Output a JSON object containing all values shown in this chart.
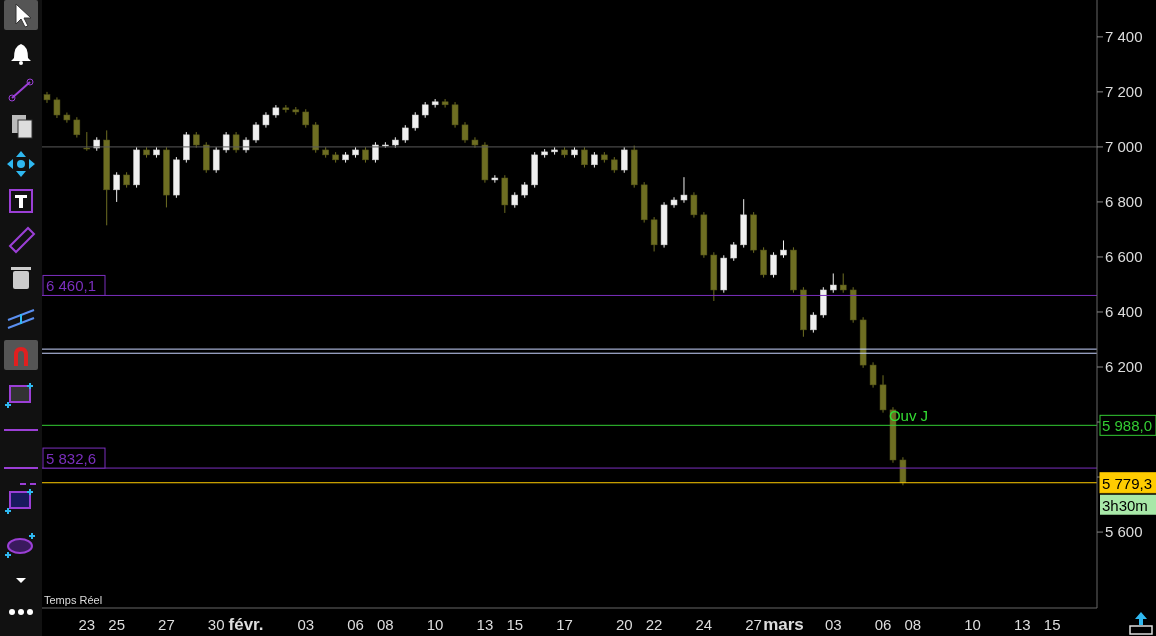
{
  "chart_data": {
    "type": "candlestick",
    "categories": [
      null,
      null,
      null,
      null,
      "23",
      null,
      null,
      "25",
      null,
      null,
      null,
      null,
      "27",
      null,
      null,
      null,
      null,
      "30",
      null,
      null,
      "févr.",
      null,
      null,
      null,
      null,
      null,
      "03",
      null,
      null,
      null,
      null,
      "06",
      null,
      null,
      "08",
      null,
      null,
      null,
      null,
      "10",
      null,
      null,
      null,
      null,
      "13",
      null,
      null,
      "15",
      null,
      null,
      null,
      null,
      "17",
      null,
      null,
      null,
      null,
      null,
      "20",
      null,
      null,
      "22",
      null,
      null,
      null,
      null,
      "24",
      null,
      null,
      null,
      null,
      "27",
      null,
      null,
      "mars",
      null,
      null,
      null,
      null,
      "03",
      null,
      null,
      null,
      null,
      "06",
      null,
      null,
      "08",
      null,
      null,
      null,
      null,
      null,
      "10",
      null,
      null,
      null,
      null,
      "13",
      null,
      null,
      "15",
      null,
      null,
      null,
      null
    ],
    "ohlc": [
      [
        7190,
        7200,
        7160,
        7171
      ],
      [
        7171,
        7180,
        7105,
        7116
      ],
      [
        7116,
        7125,
        7088,
        7098
      ],
      [
        7098,
        7108,
        7034,
        7044
      ],
      [
        6996,
        7054,
        6986,
        6996
      ],
      [
        6996,
        7035,
        6986,
        7025
      ],
      [
        7025,
        7060,
        6715,
        6844
      ],
      [
        6844,
        6908,
        6800,
        6898
      ],
      [
        6898,
        6908,
        6852,
        6862
      ],
      [
        6862,
        6999,
        6852,
        6989
      ],
      [
        6989,
        6999,
        6961,
        6971
      ],
      [
        6971,
        6999,
        6961,
        6989
      ],
      [
        6989,
        6999,
        6780,
        6825
      ],
      [
        6825,
        6963,
        6815,
        6953
      ],
      [
        6953,
        7054,
        6943,
        7044
      ],
      [
        7044,
        7054,
        6997,
        7007
      ],
      [
        7007,
        7017,
        6906,
        6916
      ],
      [
        6916,
        6999,
        6906,
        6989
      ],
      [
        6989,
        7054,
        6979,
        7044
      ],
      [
        7044,
        7054,
        6979,
        6989
      ],
      [
        6989,
        7035,
        6979,
        7025
      ],
      [
        7025,
        7090,
        7015,
        7080
      ],
      [
        7080,
        7126,
        7070,
        7116
      ],
      [
        7116,
        7152,
        7106,
        7142
      ],
      [
        7142,
        7152,
        7125,
        7135
      ],
      [
        7135,
        7145,
        7117,
        7127
      ],
      [
        7127,
        7137,
        7070,
        7080
      ],
      [
        7080,
        7090,
        6979,
        6989
      ],
      [
        6989,
        6999,
        6961,
        6971
      ],
      [
        6971,
        6981,
        6943,
        6953
      ],
      [
        6953,
        6981,
        6943,
        6971
      ],
      [
        6971,
        6999,
        6961,
        6989
      ],
      [
        6989,
        6999,
        6943,
        6953
      ],
      [
        6953,
        7017,
        6943,
        7007
      ],
      [
        7007,
        7017,
        6997,
        7007
      ],
      [
        7007,
        7035,
        6997,
        7025
      ],
      [
        7025,
        7079,
        7015,
        7069
      ],
      [
        7069,
        7126,
        7059,
        7116
      ],
      [
        7116,
        7163,
        7106,
        7153
      ],
      [
        7153,
        7174,
        7143,
        7164
      ],
      [
        7164,
        7174,
        7143,
        7153
      ],
      [
        7153,
        7163,
        7070,
        7080
      ],
      [
        7080,
        7090,
        7015,
        7025
      ],
      [
        7025,
        7035,
        6997,
        7007
      ],
      [
        7007,
        7017,
        6870,
        6880
      ],
      [
        6880,
        6897,
        6870,
        6887
      ],
      [
        6887,
        6897,
        6760,
        6789
      ],
      [
        6789,
        6835,
        6779,
        6825
      ],
      [
        6825,
        6872,
        6815,
        6862
      ],
      [
        6862,
        6981,
        6852,
        6971
      ],
      [
        6971,
        6992,
        6961,
        6982
      ],
      [
        6982,
        6999,
        6972,
        6989
      ],
      [
        6989,
        6999,
        6961,
        6971
      ],
      [
        6971,
        6999,
        6961,
        6989
      ],
      [
        6989,
        6999,
        6925,
        6935
      ],
      [
        6935,
        6981,
        6925,
        6971
      ],
      [
        6971,
        6981,
        6943,
        6953
      ],
      [
        6953,
        6963,
        6906,
        6916
      ],
      [
        6916,
        6999,
        6906,
        6989
      ],
      [
        6989,
        7005,
        6852,
        6862
      ],
      [
        6862,
        6872,
        6725,
        6735
      ],
      [
        6735,
        6745,
        6620,
        6644
      ],
      [
        6644,
        6799,
        6634,
        6789
      ],
      [
        6789,
        6817,
        6779,
        6807
      ],
      [
        6807,
        6890,
        6797,
        6825
      ],
      [
        6825,
        6835,
        6743,
        6753
      ],
      [
        6753,
        6763,
        6597,
        6607
      ],
      [
        6607,
        6617,
        6440,
        6480
      ],
      [
        6480,
        6606,
        6470,
        6596
      ],
      [
        6596,
        6654,
        6586,
        6644
      ],
      [
        6644,
        6810,
        6634,
        6753
      ],
      [
        6753,
        6763,
        6615,
        6625
      ],
      [
        6625,
        6635,
        6525,
        6535
      ],
      [
        6535,
        6617,
        6525,
        6607
      ],
      [
        6607,
        6660,
        6597,
        6625
      ],
      [
        6625,
        6635,
        6470,
        6480
      ],
      [
        6480,
        6490,
        6310,
        6335
      ],
      [
        6335,
        6399,
        6325,
        6389
      ],
      [
        6389,
        6490,
        6379,
        6480
      ],
      [
        6480,
        6540,
        6470,
        6498
      ],
      [
        6498,
        6540,
        6470,
        6480
      ],
      [
        6480,
        6490,
        6361,
        6371
      ],
      [
        6371,
        6381,
        6197,
        6207
      ],
      [
        6207,
        6217,
        6125,
        6135
      ],
      [
        6135,
        6170,
        6034,
        6044
      ],
      [
        6044,
        6054,
        5852,
        5862
      ],
      [
        5862,
        5872,
        5770,
        5779.3
      ],
      null,
      null,
      null,
      null,
      null,
      null,
      null,
      null,
      null,
      null,
      null,
      null,
      null,
      null,
      null,
      null,
      null,
      null,
      null
    ],
    "colors": [
      "#6e6e22",
      "#6e6e22",
      "#6e6e22",
      "#6e6e22",
      "#6e6e22",
      "#f0f0f0",
      "#6e6e22",
      "#f0f0f0",
      "#6e6e22",
      "#f0f0f0",
      "#6e6e22",
      "#f0f0f0",
      "#6e6e22",
      "#f0f0f0",
      "#f0f0f0",
      "#6e6e22",
      "#6e6e22",
      "#f0f0f0",
      "#f0f0f0",
      "#6e6e22",
      "#f0f0f0",
      "#f0f0f0",
      "#f0f0f0",
      "#f0f0f0",
      "#6e6e22",
      "#6e6e22",
      "#6e6e22",
      "#6e6e22",
      "#6e6e22",
      "#6e6e22",
      "#f0f0f0",
      "#f0f0f0",
      "#6e6e22",
      "#f0f0f0",
      "#f0f0f0",
      "#f0f0f0",
      "#f0f0f0",
      "#f0f0f0",
      "#f0f0f0",
      "#f0f0f0",
      "#6e6e22",
      "#6e6e22",
      "#6e6e22",
      "#6e6e22",
      "#6e6e22",
      "#f0f0f0",
      "#6e6e22",
      "#f0f0f0",
      "#f0f0f0",
      "#f0f0f0",
      "#f0f0f0",
      "#f0f0f0",
      "#6e6e22",
      "#f0f0f0",
      "#6e6e22",
      "#f0f0f0",
      "#6e6e22",
      "#6e6e22",
      "#f0f0f0",
      "#6e6e22",
      "#6e6e22",
      "#6e6e22",
      "#f0f0f0",
      "#f0f0f0",
      "#f0f0f0",
      "#6e6e22",
      "#6e6e22",
      "#6e6e22",
      "#f0f0f0",
      "#f0f0f0",
      "#f0f0f0",
      "#6e6e22",
      "#6e6e22",
      "#f0f0f0",
      "#f0f0f0",
      "#6e6e22",
      "#6e6e22",
      "#f0f0f0",
      "#f0f0f0",
      "#f0f0f0",
      "#6e6e22",
      "#6e6e22",
      "#6e6e22",
      "#6e6e22",
      "#6e6e22",
      "#6e6e22",
      "#6e6e22",
      null,
      null,
      null,
      null,
      null,
      null,
      null,
      null,
      null,
      null,
      null,
      null,
      null,
      null,
      null,
      null,
      null,
      null,
      null
    ],
    "ylim": [
      5324,
      7534
    ],
    "yticks": [
      {
        "value": 5600,
        "label": "5 600"
      },
      {
        "value": 5800,
        "label": null
      },
      {
        "value": 6000,
        "label": null
      },
      {
        "value": 6200,
        "label": "6 200"
      },
      {
        "value": 6400,
        "label": "6 400"
      },
      {
        "value": 6600,
        "label": "6 600"
      },
      {
        "value": 6800,
        "label": "6 800"
      },
      {
        "value": 7000,
        "label": "7 000"
      },
      {
        "value": 7200,
        "label": "7 200"
      },
      {
        "value": 7400,
        "label": "7 400"
      }
    ],
    "ref_lines": [
      {
        "axis": "y",
        "value": 7000,
        "color": "#5a5a5a"
      },
      {
        "axis": "y",
        "value": 6460.1,
        "label": "6 460,1",
        "color": "#7b2fbe"
      },
      {
        "axis": "y",
        "value": 6265,
        "color": "#c8d4ff"
      },
      {
        "axis": "y",
        "value": 6250,
        "color": "#c8d4ff"
      },
      {
        "axis": "y",
        "value": 5988,
        "label": "5 988,0",
        "color": "#33cc33"
      },
      {
        "axis": "y",
        "value": 5832.6,
        "label": "5 832,6",
        "color": "#7b2fbe"
      },
      {
        "axis": "y",
        "value": 5779.3,
        "label": "5 779,3",
        "color": "#ffcc00"
      }
    ],
    "annotations": [
      "Temps Réel",
      "3h30m",
      {
        "text": "Ouv J",
        "y": 5988
      }
    ]
  }
}
